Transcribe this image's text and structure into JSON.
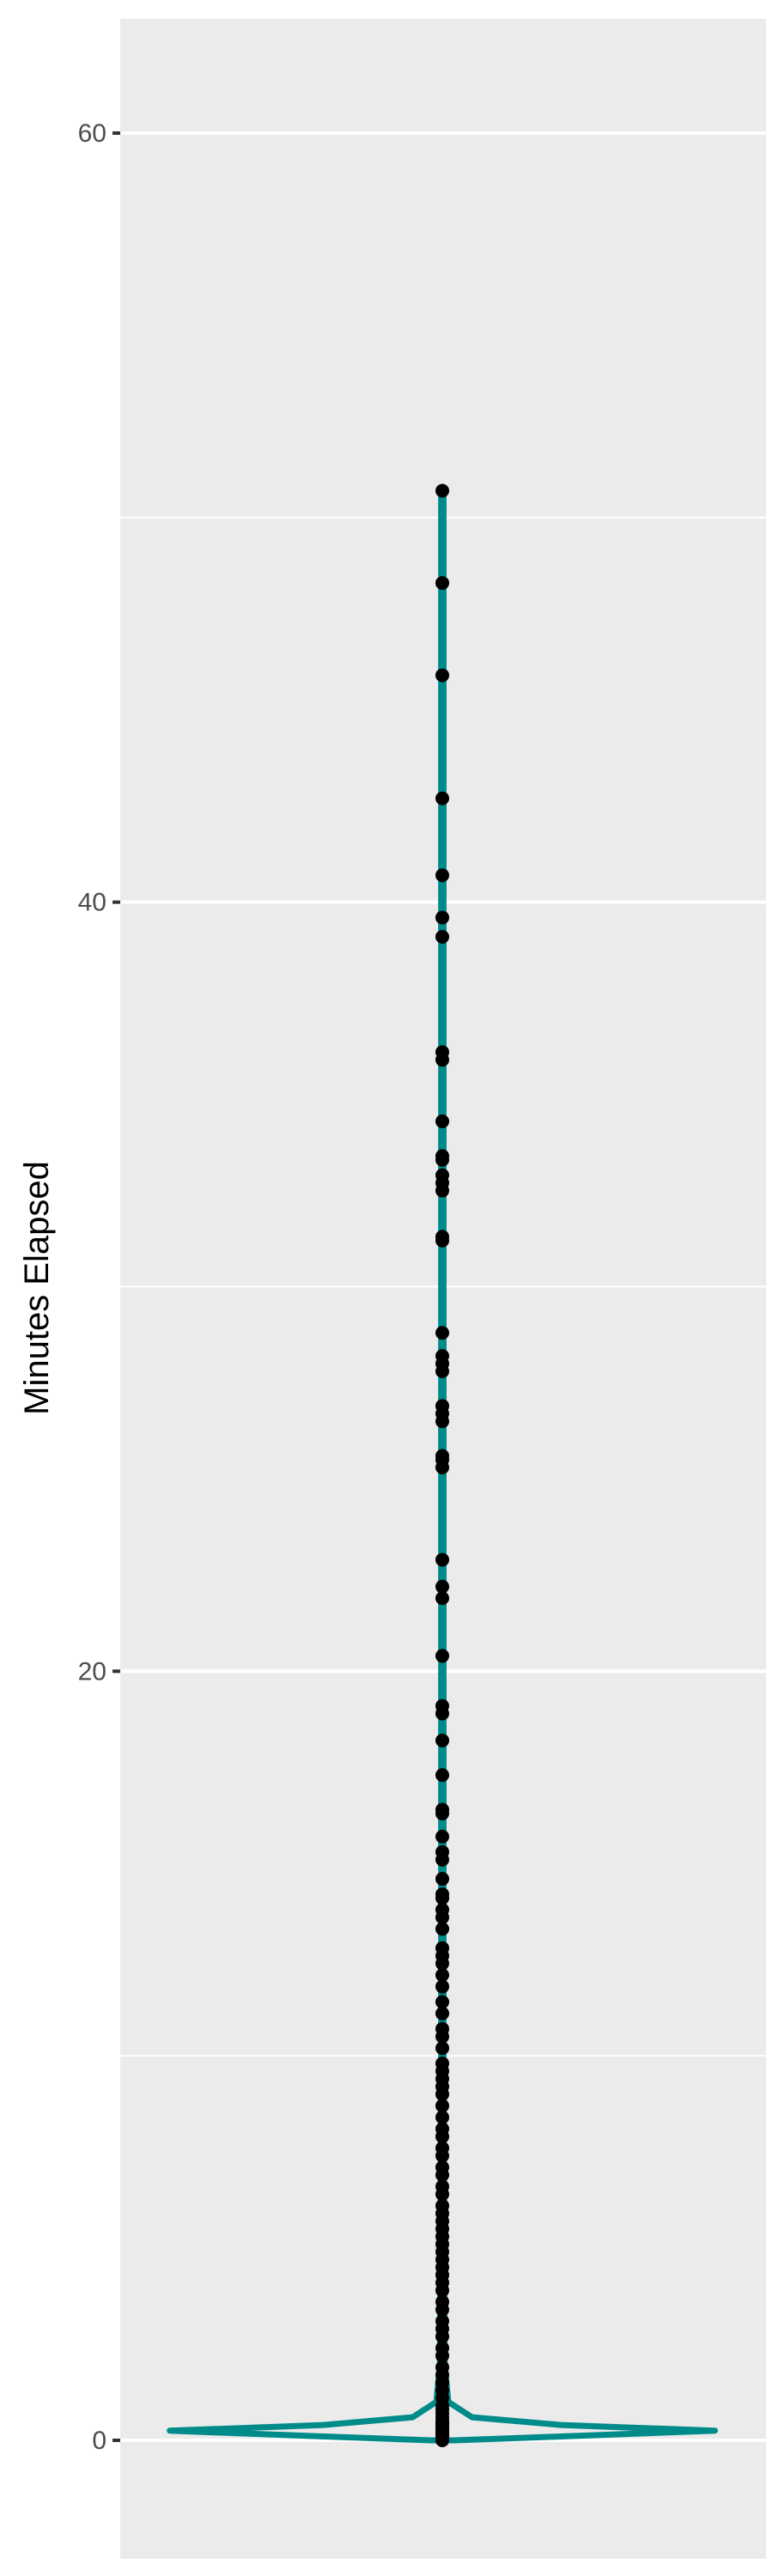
{
  "chart_data": {
    "type": "violin",
    "title": "",
    "xlabel": "",
    "ylabel": "Minutes Elapsed",
    "ylim": [
      -3,
      63
    ],
    "y_ticks": [
      0,
      20,
      40,
      60
    ],
    "y_tick_labels": [
      "0",
      "20",
      "40",
      "60"
    ],
    "y_minor_gridlines": [
      10,
      30,
      50
    ],
    "grid": true,
    "legend": "none",
    "colors": {
      "panel": "#ebebeb",
      "grid": "#ffffff",
      "violin": "#008b8b",
      "points": "#000000",
      "tick": "#333333"
    },
    "violin": {
      "center_x": 1,
      "x_range": [
        0.5,
        1.5
      ],
      "profile": [
        {
          "y": 0.0,
          "half_width": 0.02
        },
        {
          "y": 0.1,
          "half_width": 0.2
        },
        {
          "y": 0.25,
          "half_width": 0.46
        },
        {
          "y": 0.4,
          "half_width": 0.2
        },
        {
          "y": 0.6,
          "half_width": 0.05
        },
        {
          "y": 1.0,
          "half_width": 0.01
        },
        {
          "y": 2.0,
          "half_width": 0.004
        },
        {
          "y": 5.0,
          "half_width": 0.003
        },
        {
          "y": 10.0,
          "half_width": 0.002
        },
        {
          "y": 30.0,
          "half_width": 0.002
        },
        {
          "y": 50.7,
          "half_width": 0.002
        }
      ]
    },
    "points": [
      50.7,
      48.3,
      45.9,
      42.7,
      40.7,
      39.6,
      39.1,
      36.1,
      35.9,
      34.3,
      33.4,
      33.3,
      32.9,
      32.7,
      32.5,
      31.3,
      31.2,
      28.8,
      28.2,
      28.0,
      27.8,
      26.9,
      26.7,
      26.5,
      25.6,
      25.5,
      25.3,
      22.9,
      22.2,
      21.9,
      20.4,
      19.1,
      18.9,
      18.2,
      17.3,
      16.4,
      16.3,
      15.7,
      15.3,
      15.1,
      14.6,
      14.2,
      14.1,
      13.8,
      13.6,
      13.3,
      12.8,
      12.6,
      12.4,
      12.1,
      11.8,
      11.4,
      11.1,
      10.7,
      10.5,
      10.2,
      9.8,
      9.6,
      9.4,
      9.2,
      9.0,
      8.7,
      8.4,
      8.1,
      7.9,
      7.6,
      7.4,
      7.1,
      6.9,
      6.6,
      6.4,
      6.1,
      5.9,
      5.7,
      5.5,
      5.3,
      5.1,
      4.9,
      4.7,
      4.5,
      4.3,
      4.1,
      3.9,
      3.6,
      3.4,
      3.1,
      2.9,
      2.7,
      2.4,
      2.2,
      1.9,
      1.7,
      1.5,
      1.3,
      1.1,
      0.9,
      0.8,
      0.7,
      0.6,
      0.5,
      0.45,
      0.4,
      0.35,
      0.3,
      0.25,
      0.2,
      0.15,
      0.1,
      0.05,
      0.0
    ]
  }
}
